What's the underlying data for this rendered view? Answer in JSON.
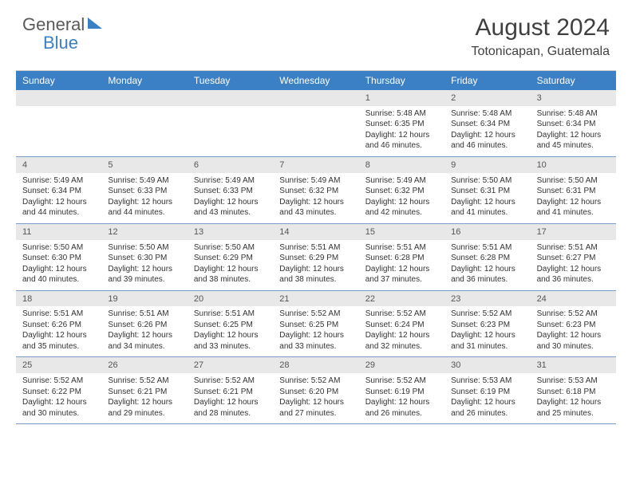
{
  "brand": {
    "part1": "General",
    "part2": "Blue"
  },
  "title": "August 2024",
  "location": "Totonicapan, Guatemala",
  "colors": {
    "header_bg": "#3b7fc4",
    "header_text": "#ffffff",
    "daynum_bg": "#e8e8e8",
    "week_border": "#7a9cc6",
    "body_text": "#333333"
  },
  "day_names": [
    "Sunday",
    "Monday",
    "Tuesday",
    "Wednesday",
    "Thursday",
    "Friday",
    "Saturday"
  ],
  "calendar": {
    "leading_blanks": 4,
    "days": [
      {
        "n": 1,
        "sunrise": "5:48 AM",
        "sunset": "6:35 PM",
        "daylight": "12 hours and 46 minutes."
      },
      {
        "n": 2,
        "sunrise": "5:48 AM",
        "sunset": "6:34 PM",
        "daylight": "12 hours and 46 minutes."
      },
      {
        "n": 3,
        "sunrise": "5:48 AM",
        "sunset": "6:34 PM",
        "daylight": "12 hours and 45 minutes."
      },
      {
        "n": 4,
        "sunrise": "5:49 AM",
        "sunset": "6:34 PM",
        "daylight": "12 hours and 44 minutes."
      },
      {
        "n": 5,
        "sunrise": "5:49 AM",
        "sunset": "6:33 PM",
        "daylight": "12 hours and 44 minutes."
      },
      {
        "n": 6,
        "sunrise": "5:49 AM",
        "sunset": "6:33 PM",
        "daylight": "12 hours and 43 minutes."
      },
      {
        "n": 7,
        "sunrise": "5:49 AM",
        "sunset": "6:32 PM",
        "daylight": "12 hours and 43 minutes."
      },
      {
        "n": 8,
        "sunrise": "5:49 AM",
        "sunset": "6:32 PM",
        "daylight": "12 hours and 42 minutes."
      },
      {
        "n": 9,
        "sunrise": "5:50 AM",
        "sunset": "6:31 PM",
        "daylight": "12 hours and 41 minutes."
      },
      {
        "n": 10,
        "sunrise": "5:50 AM",
        "sunset": "6:31 PM",
        "daylight": "12 hours and 41 minutes."
      },
      {
        "n": 11,
        "sunrise": "5:50 AM",
        "sunset": "6:30 PM",
        "daylight": "12 hours and 40 minutes."
      },
      {
        "n": 12,
        "sunrise": "5:50 AM",
        "sunset": "6:30 PM",
        "daylight": "12 hours and 39 minutes."
      },
      {
        "n": 13,
        "sunrise": "5:50 AM",
        "sunset": "6:29 PM",
        "daylight": "12 hours and 38 minutes."
      },
      {
        "n": 14,
        "sunrise": "5:51 AM",
        "sunset": "6:29 PM",
        "daylight": "12 hours and 38 minutes."
      },
      {
        "n": 15,
        "sunrise": "5:51 AM",
        "sunset": "6:28 PM",
        "daylight": "12 hours and 37 minutes."
      },
      {
        "n": 16,
        "sunrise": "5:51 AM",
        "sunset": "6:28 PM",
        "daylight": "12 hours and 36 minutes."
      },
      {
        "n": 17,
        "sunrise": "5:51 AM",
        "sunset": "6:27 PM",
        "daylight": "12 hours and 36 minutes."
      },
      {
        "n": 18,
        "sunrise": "5:51 AM",
        "sunset": "6:26 PM",
        "daylight": "12 hours and 35 minutes."
      },
      {
        "n": 19,
        "sunrise": "5:51 AM",
        "sunset": "6:26 PM",
        "daylight": "12 hours and 34 minutes."
      },
      {
        "n": 20,
        "sunrise": "5:51 AM",
        "sunset": "6:25 PM",
        "daylight": "12 hours and 33 minutes."
      },
      {
        "n": 21,
        "sunrise": "5:52 AM",
        "sunset": "6:25 PM",
        "daylight": "12 hours and 33 minutes."
      },
      {
        "n": 22,
        "sunrise": "5:52 AM",
        "sunset": "6:24 PM",
        "daylight": "12 hours and 32 minutes."
      },
      {
        "n": 23,
        "sunrise": "5:52 AM",
        "sunset": "6:23 PM",
        "daylight": "12 hours and 31 minutes."
      },
      {
        "n": 24,
        "sunrise": "5:52 AM",
        "sunset": "6:23 PM",
        "daylight": "12 hours and 30 minutes."
      },
      {
        "n": 25,
        "sunrise": "5:52 AM",
        "sunset": "6:22 PM",
        "daylight": "12 hours and 30 minutes."
      },
      {
        "n": 26,
        "sunrise": "5:52 AM",
        "sunset": "6:21 PM",
        "daylight": "12 hours and 29 minutes."
      },
      {
        "n": 27,
        "sunrise": "5:52 AM",
        "sunset": "6:21 PM",
        "daylight": "12 hours and 28 minutes."
      },
      {
        "n": 28,
        "sunrise": "5:52 AM",
        "sunset": "6:20 PM",
        "daylight": "12 hours and 27 minutes."
      },
      {
        "n": 29,
        "sunrise": "5:52 AM",
        "sunset": "6:19 PM",
        "daylight": "12 hours and 26 minutes."
      },
      {
        "n": 30,
        "sunrise": "5:53 AM",
        "sunset": "6:19 PM",
        "daylight": "12 hours and 26 minutes."
      },
      {
        "n": 31,
        "sunrise": "5:53 AM",
        "sunset": "6:18 PM",
        "daylight": "12 hours and 25 minutes."
      }
    ]
  },
  "labels": {
    "sunrise": "Sunrise:",
    "sunset": "Sunset:",
    "daylight": "Daylight:"
  }
}
